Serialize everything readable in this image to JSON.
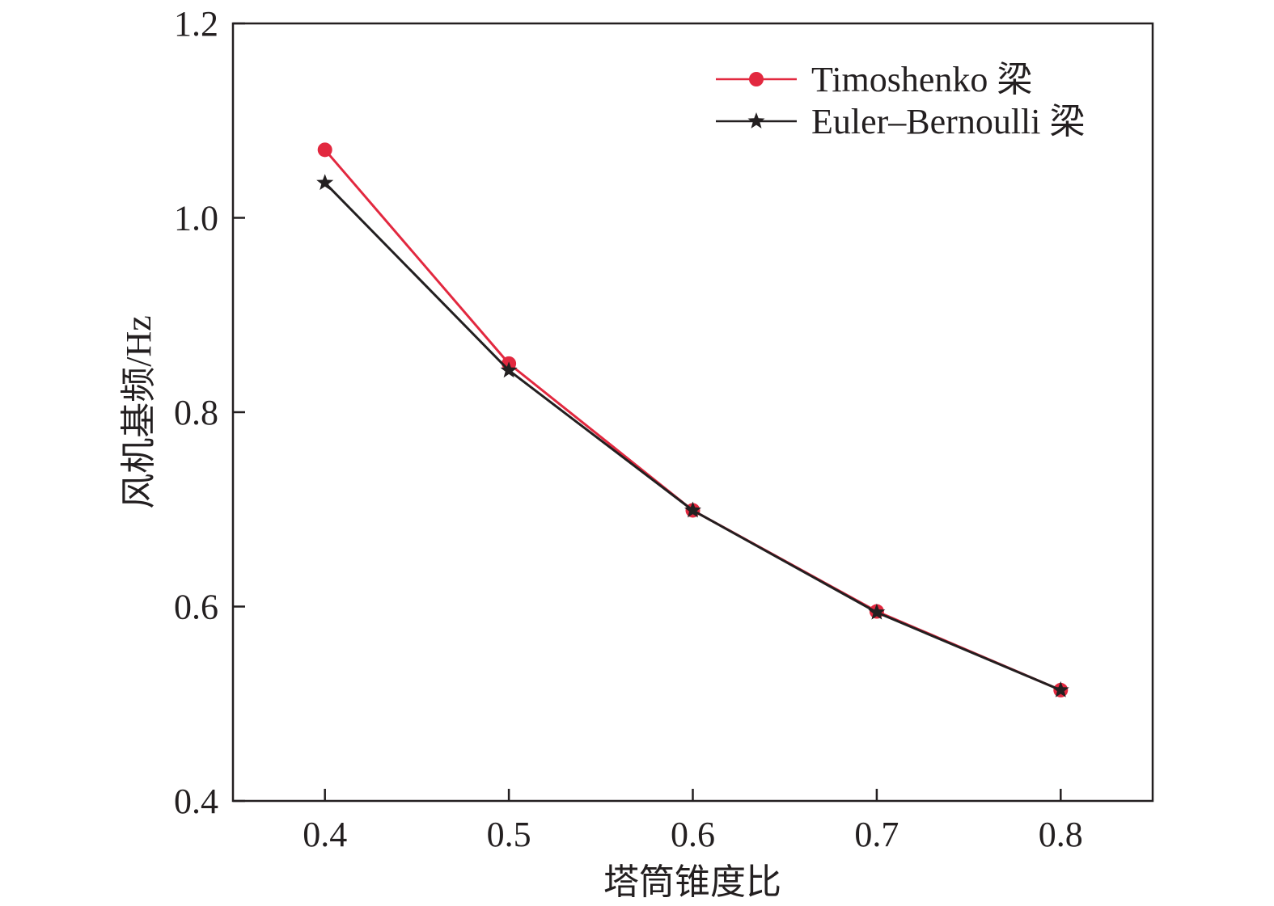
{
  "chart_data": {
    "type": "line",
    "title": "",
    "xlabel": "塔筒锥度比",
    "ylabel": "风机基频/Hz",
    "xlim": [
      0.35,
      0.85
    ],
    "ylim": [
      0.4,
      1.2
    ],
    "x_ticks": [
      "0.4",
      "0.5",
      "0.6",
      "0.7",
      "0.8"
    ],
    "y_ticks": [
      "0.4",
      "0.6",
      "0.8",
      "1.0",
      "1.2"
    ],
    "x": [
      0.4,
      0.5,
      0.6,
      0.7,
      0.8
    ],
    "grid": false,
    "legend_position": "top-right",
    "series": [
      {
        "name": "Timoshenko 梁",
        "color": "#e2283f",
        "marker": "circle",
        "values": [
          1.07,
          0.85,
          0.699,
          0.595,
          0.514
        ]
      },
      {
        "name": "Euler–Bernoulli 梁",
        "color": "#231f20",
        "marker": "star",
        "values": [
          1.036,
          0.843,
          0.699,
          0.594,
          0.514
        ]
      }
    ]
  }
}
